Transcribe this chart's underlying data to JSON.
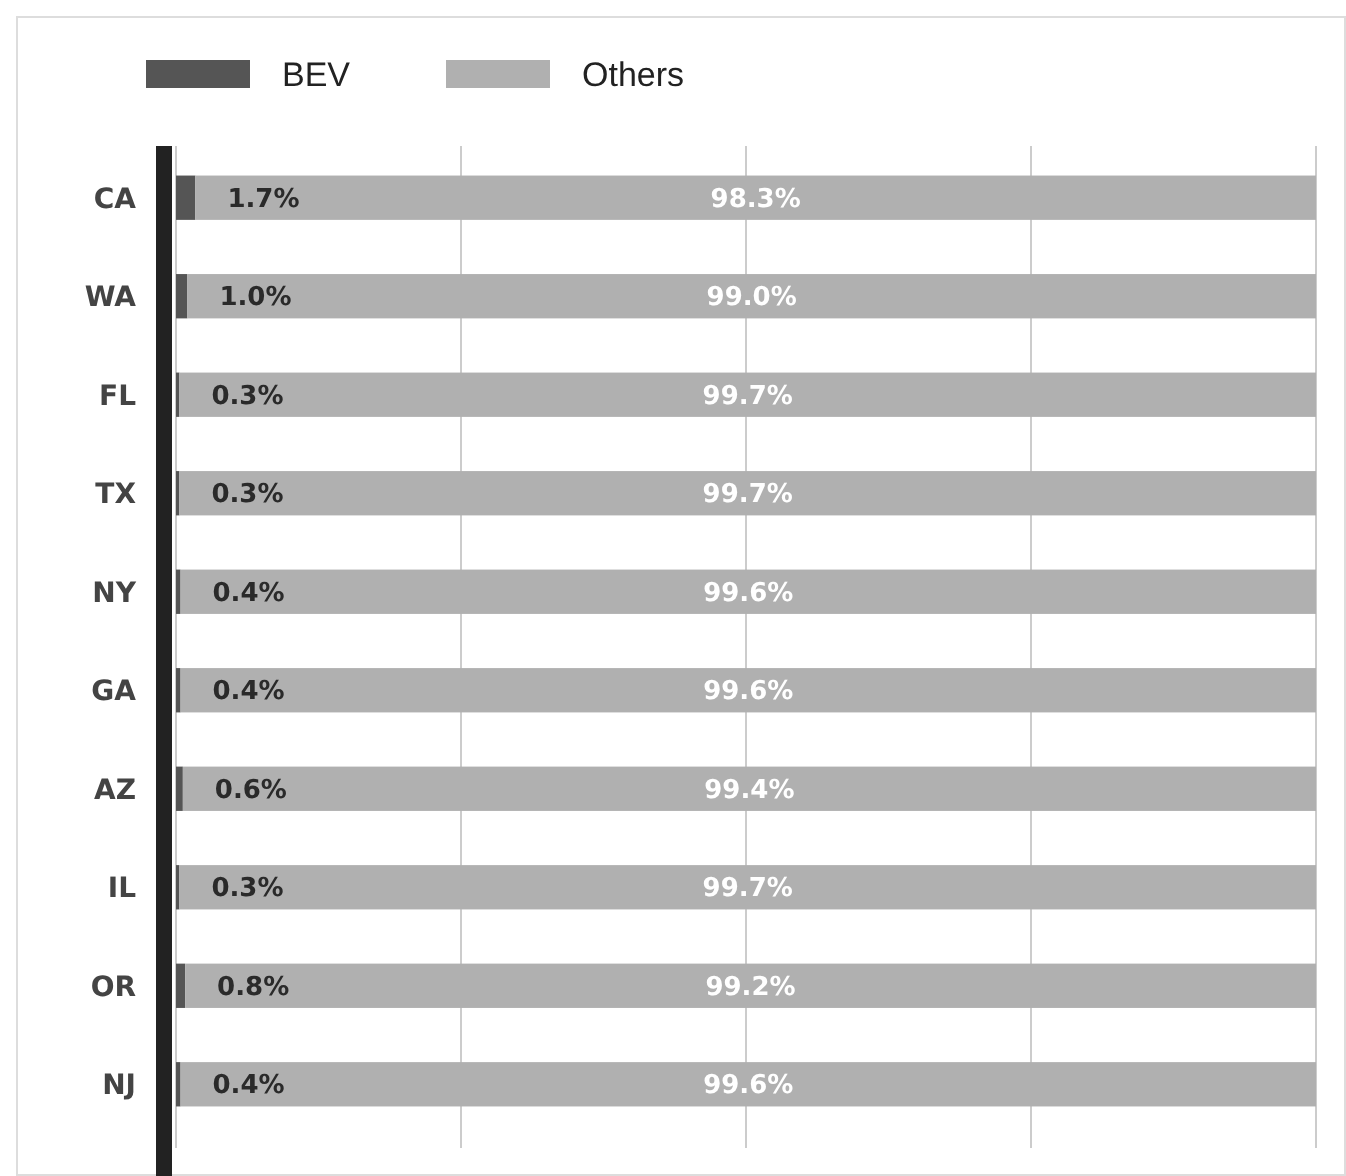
{
  "chart_data": {
    "type": "bar",
    "orientation": "horizontal",
    "stacked": true,
    "categories": [
      "CA",
      "WA",
      "FL",
      "TX",
      "NY",
      "GA",
      "AZ",
      "IL",
      "OR",
      "NJ"
    ],
    "series": [
      {
        "name": "BEV",
        "color": "#555555",
        "values": [
          1.7,
          1.0,
          0.3,
          0.3,
          0.4,
          0.4,
          0.6,
          0.3,
          0.8,
          0.4
        ],
        "value_labels": [
          "1.7%",
          "1.0%",
          "0.3%",
          "0.3%",
          "0.4%",
          "0.4%",
          "0.6%",
          "0.3%",
          "0.8%",
          "0.4%"
        ]
      },
      {
        "name": "Others",
        "color": "#b0b0b0",
        "values": [
          98.3,
          99.0,
          99.7,
          99.7,
          99.6,
          99.6,
          99.4,
          99.7,
          99.2,
          99.6
        ],
        "value_labels": [
          "98.3%",
          "99.0%",
          "99.7%",
          "99.7%",
          "99.6%",
          "99.6%",
          "99.4%",
          "99.7%",
          "99.2%",
          "99.6%"
        ]
      }
    ],
    "xlim": [
      0,
      100
    ],
    "xticks": [
      {
        "value": 0,
        "label": null
      },
      {
        "value": 25,
        "label": null
      },
      {
        "value": 50,
        "label": null
      },
      {
        "value": 75,
        "label": null
      },
      {
        "value": 100,
        "label": null
      }
    ],
    "grid": "x",
    "legend": "top left",
    "tick_labels": "y"
  }
}
